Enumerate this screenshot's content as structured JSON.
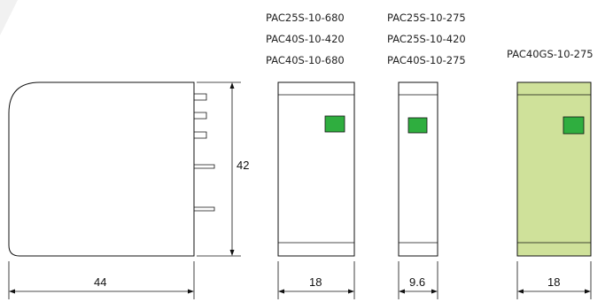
{
  "model_groups": [
    {
      "models": [
        "PAC25S-10-680",
        "PAC40S-10-420",
        "PAC40S-10-680"
      ]
    },
    {
      "models": [
        "PAC25S-10-275",
        "PAC25S-10-420",
        "PAC40S-10-275"
      ]
    },
    {
      "models": [
        "PAC40GS-10-275"
      ]
    }
  ],
  "dimensions": {
    "side_width": "44",
    "height": "42",
    "front_width_a": "18",
    "front_width_b": "9.6",
    "front_width_c": "18"
  },
  "colors": {
    "indicator_green": "#2fae3f",
    "housing_yellow_green": "#cfe19a"
  }
}
